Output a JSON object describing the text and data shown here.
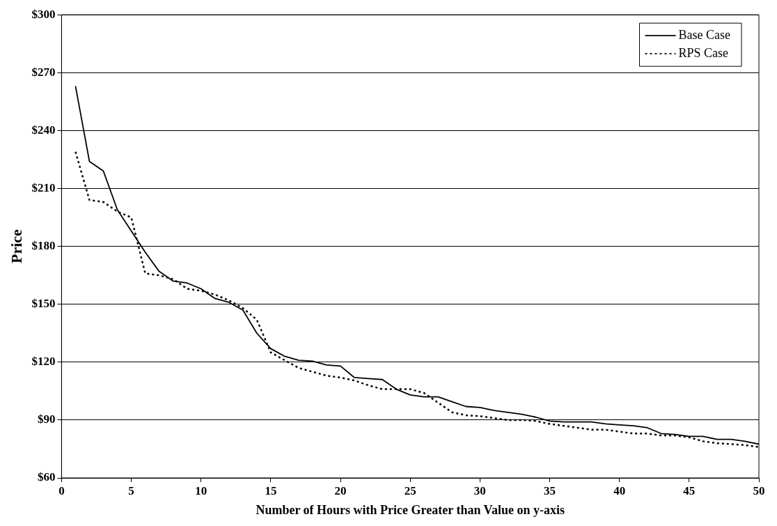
{
  "chart_data": {
    "type": "line",
    "xlabel": "Number of Hours with Price Greater than Value on y-axis",
    "ylabel": "Price",
    "x": [
      1,
      2,
      3,
      4,
      5,
      6,
      7,
      8,
      9,
      10,
      11,
      12,
      13,
      14,
      15,
      16,
      17,
      18,
      19,
      20,
      21,
      22,
      23,
      24,
      25,
      26,
      27,
      28,
      29,
      30,
      31,
      32,
      33,
      34,
      35,
      36,
      37,
      38,
      39,
      40,
      41,
      42,
      43,
      44,
      45,
      46,
      47,
      48,
      49,
      50
    ],
    "series": [
      {
        "name": "Base Case",
        "color": "#000000",
        "line_style": "solid",
        "values": [
          263,
          224,
          219,
          199,
          188,
          177,
          167,
          162,
          161,
          158,
          153,
          151,
          147,
          135,
          127,
          123,
          121,
          120.5,
          118.5,
          118,
          112,
          111.5,
          111,
          106,
          103,
          102,
          102,
          99.5,
          97,
          96.5,
          95,
          94,
          93,
          91.5,
          89.5,
          89,
          89,
          89,
          88,
          87.5,
          87,
          86,
          83,
          82.5,
          81.5,
          81.5,
          80,
          80,
          79,
          77.5
        ]
      },
      {
        "name": "RPS Case",
        "color": "#000000",
        "line_style": "dotted",
        "values": [
          229,
          204,
          203,
          198,
          195,
          166,
          165,
          163,
          158,
          157,
          155,
          152,
          148,
          142,
          125,
          121,
          117,
          115,
          113,
          112,
          110.5,
          108,
          106,
          106,
          106,
          104,
          99,
          94,
          92.5,
          92,
          91,
          90,
          90,
          89.5,
          88,
          87,
          86,
          85,
          85,
          84,
          83,
          83,
          82,
          82,
          81,
          79,
          78,
          77.5,
          77,
          76
        ]
      }
    ],
    "xlim": [
      0,
      50
    ],
    "xticks": [
      0,
      5,
      10,
      15,
      20,
      25,
      30,
      35,
      40,
      45,
      50
    ],
    "ylim": [
      60,
      300
    ],
    "yticks": [
      {
        "value": 60,
        "label": "$60"
      },
      {
        "value": 90,
        "label": "$90"
      },
      {
        "value": 120,
        "label": "$120"
      },
      {
        "value": 150,
        "label": "$150"
      },
      {
        "value": 180,
        "label": "$180"
      },
      {
        "value": 210,
        "label": "$210"
      },
      {
        "value": 240,
        "label": "$240"
      },
      {
        "value": 270,
        "label": "$270"
      },
      {
        "value": 300,
        "label": "$300"
      }
    ],
    "grid": "y",
    "legend": "top right",
    "marker": "none"
  }
}
